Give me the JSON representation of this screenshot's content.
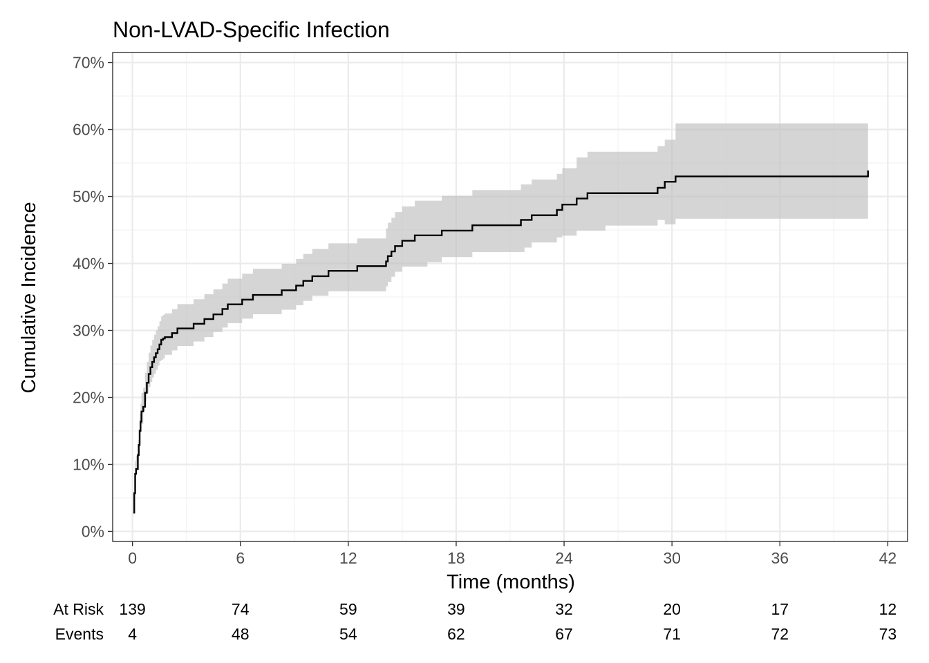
{
  "chart_data": {
    "type": "line",
    "title": "Non-LVAD-Specific Infection",
    "xlabel": "Time (months)",
    "ylabel": "Cumulative Incidence",
    "xlim": [
      -1.1,
      43.1
    ],
    "ylim": [
      -1.5,
      71.5
    ],
    "x_ticks": [
      0,
      6,
      12,
      18,
      24,
      30,
      36,
      42
    ],
    "x_tick_labels": [
      "0",
      "6",
      "12",
      "18",
      "24",
      "30",
      "36",
      "42"
    ],
    "y_ticks": [
      0,
      10,
      20,
      30,
      40,
      50,
      60,
      70
    ],
    "y_tick_labels": [
      "0%",
      "10%",
      "20%",
      "30%",
      "40%",
      "50%",
      "60%",
      "70%"
    ],
    "grid": true,
    "series": [
      {
        "step": "post",
        "x": [
          0.05,
          0.1,
          0.15,
          0.2,
          0.3,
          0.35,
          0.4,
          0.45,
          0.5,
          0.6,
          0.7,
          0.8,
          0.9,
          1.0,
          1.1,
          1.2,
          1.3,
          1.4,
          1.5,
          1.6,
          1.7,
          1.8,
          2.2,
          2.5,
          3.4,
          4.0,
          4.5,
          5.0,
          5.3,
          6.1,
          6.7,
          8.3,
          9.1,
          9.5,
          10.0,
          10.9,
          12.5,
          14.1,
          14.2,
          14.4,
          14.6,
          15.0,
          15.7,
          16.4,
          17.2,
          18.9,
          21.6,
          21.8,
          22.2,
          23.6,
          23.9,
          24.7,
          25.3,
          26.3,
          29.2,
          29.6,
          30.2,
          40.9
        ],
        "y": [
          2.8,
          5.7,
          8.6,
          9.3,
          11.4,
          12.9,
          15.0,
          16.4,
          17.9,
          18.6,
          20.7,
          22.2,
          23.5,
          24.5,
          25.3,
          26.0,
          26.6,
          27.2,
          27.9,
          28.6,
          28.8,
          29.0,
          29.6,
          30.3,
          31.0,
          31.7,
          32.4,
          33.2,
          33.9,
          34.6,
          35.3,
          36.0,
          36.7,
          37.4,
          38.1,
          38.9,
          39.6,
          40.3,
          41.1,
          41.8,
          42.6,
          43.4,
          44.2,
          44.2,
          44.9,
          45.7,
          46.5,
          46.5,
          47.2,
          48.0,
          48.8,
          49.7,
          50.5,
          50.5,
          51.3,
          52.2,
          53.0,
          53.9
        ]
      }
    ],
    "risk_table": {
      "rows": [
        {
          "label": "At Risk",
          "values": [
            "139",
            "74",
            "59",
            "39",
            "32",
            "20",
            "17",
            "12"
          ]
        },
        {
          "label": "Events",
          "values": [
            "4",
            "48",
            "54",
            "62",
            "67",
            "71",
            "72",
            "73"
          ]
        }
      ]
    }
  }
}
